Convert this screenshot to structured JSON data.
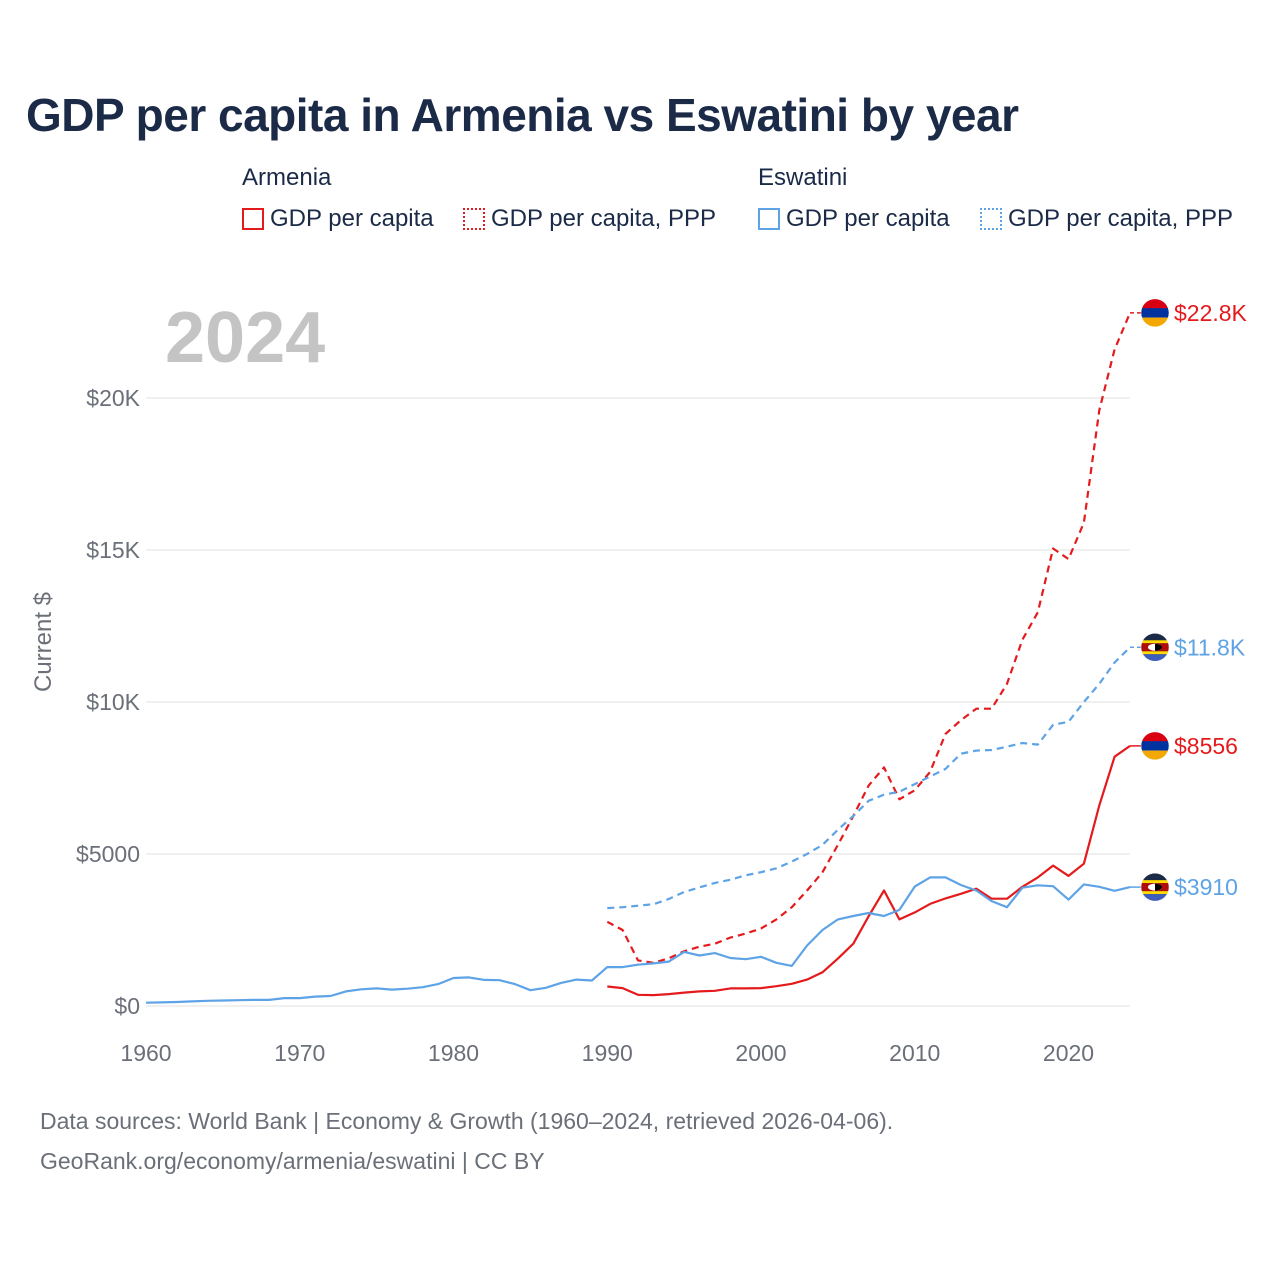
{
  "chart_data": {
    "type": "line",
    "title": "GDP per capita in Armenia vs Eswatini by year",
    "year_label": "2024",
    "ylabel": "Current $",
    "xlabel": "",
    "xlim": [
      1960,
      2024
    ],
    "ylim": [
      0,
      23500
    ],
    "x_ticks": [
      1960,
      1970,
      1980,
      1990,
      2000,
      2010,
      2020
    ],
    "x_tick_labels": [
      "1960",
      "1970",
      "1980",
      "1990",
      "2000",
      "2010",
      "2020"
    ],
    "y_ticks": [
      0,
      5000,
      10000,
      15000,
      20000
    ],
    "y_tick_labels": [
      "$0",
      "$5000",
      "$10K",
      "$15K",
      "$20K"
    ],
    "legend": {
      "groups": [
        {
          "name": "Armenia",
          "items": [
            {
              "label": "GDP per capita",
              "style": "solid",
              "color": "#e41a1c"
            },
            {
              "label": "GDP per capita, PPP",
              "style": "dotted",
              "color": "#e41a1c"
            }
          ]
        },
        {
          "name": "Eswatini",
          "items": [
            {
              "label": "GDP per capita",
              "style": "solid",
              "color": "#5ea3e6"
            },
            {
              "label": "GDP per capita, PPP",
              "style": "dotted",
              "color": "#5ea3e6"
            }
          ]
        }
      ]
    },
    "series": [
      {
        "name": "Armenia GDP per capita",
        "country": "Armenia",
        "color": "#e41a1c",
        "dashed": false,
        "end_label": "$8556",
        "flag": "armenia",
        "x": [
          1990,
          1991,
          1992,
          1993,
          1994,
          1995,
          1996,
          1997,
          1998,
          1999,
          2000,
          2001,
          2002,
          2003,
          2004,
          2005,
          2006,
          2007,
          2008,
          2009,
          2010,
          2011,
          2012,
          2013,
          2014,
          2015,
          2016,
          2017,
          2018,
          2019,
          2020,
          2021,
          2022,
          2023,
          2024
        ],
        "values": [
          640,
          590,
          370,
          360,
          390,
          440,
          480,
          500,
          580,
          580,
          590,
          650,
          730,
          870,
          1110,
          1560,
          2050,
          2950,
          3800,
          2850,
          3080,
          3360,
          3540,
          3690,
          3860,
          3530,
          3530,
          3920,
          4230,
          4620,
          4280,
          4680,
          6600,
          8200,
          8556
        ]
      },
      {
        "name": "Armenia GDP per capita, PPP",
        "country": "Armenia",
        "color": "#e41a1c",
        "dashed": true,
        "end_label": "$22.8K",
        "flag": "armenia",
        "x": [
          1990,
          1991,
          1992,
          1993,
          1994,
          1995,
          1996,
          1997,
          1998,
          1999,
          2000,
          2001,
          2002,
          2003,
          2004,
          2005,
          2006,
          2007,
          2008,
          2009,
          2010,
          2011,
          2012,
          2013,
          2014,
          2015,
          2016,
          2017,
          2018,
          2019,
          2020,
          2021,
          2022,
          2023,
          2024
        ],
        "values": [
          2770,
          2500,
          1500,
          1420,
          1570,
          1800,
          1950,
          2050,
          2250,
          2380,
          2550,
          2850,
          3250,
          3800,
          4400,
          5300,
          6250,
          7250,
          7850,
          6800,
          7100,
          7700,
          8950,
          9400,
          9780,
          9780,
          10600,
          12050,
          12950,
          15050,
          14700,
          15900,
          19600,
          21600,
          22800
        ]
      },
      {
        "name": "Eswatini GDP per capita",
        "country": "Eswatini",
        "color": "#5ea3e6",
        "dashed": false,
        "end_label": "$3910",
        "flag": "eswatini",
        "x": [
          1960,
          1961,
          1962,
          1963,
          1964,
          1965,
          1966,
          1967,
          1968,
          1969,
          1970,
          1971,
          1972,
          1973,
          1974,
          1975,
          1976,
          1977,
          1978,
          1979,
          1980,
          1981,
          1982,
          1983,
          1984,
          1985,
          1986,
          1987,
          1988,
          1989,
          1990,
          1991,
          1992,
          1993,
          1994,
          1995,
          1996,
          1997,
          1998,
          1999,
          2000,
          2001,
          2002,
          2003,
          2004,
          2005,
          2006,
          2007,
          2008,
          2009,
          2010,
          2011,
          2012,
          2013,
          2014,
          2015,
          2016,
          2017,
          2018,
          2019,
          2020,
          2021,
          2022,
          2023,
          2024
        ],
        "values": [
          110,
          120,
          130,
          150,
          170,
          180,
          190,
          200,
          200,
          260,
          260,
          310,
          330,
          480,
          550,
          580,
          540,
          570,
          620,
          720,
          920,
          940,
          860,
          850,
          720,
          520,
          600,
          760,
          870,
          840,
          1280,
          1280,
          1360,
          1400,
          1460,
          1780,
          1660,
          1740,
          1580,
          1540,
          1620,
          1420,
          1320,
          1990,
          2500,
          2850,
          2960,
          3060,
          2960,
          3160,
          3930,
          4230,
          4230,
          3980,
          3800,
          3450,
          3250,
          3890,
          3970,
          3940,
          3500,
          4000,
          3920,
          3790,
          3910
        ]
      },
      {
        "name": "Eswatini GDP per capita, PPP",
        "country": "Eswatini",
        "color": "#5ea3e6",
        "dashed": true,
        "end_label": "$11.8K",
        "flag": "eswatini",
        "x": [
          1990,
          1991,
          1992,
          1993,
          1994,
          1995,
          1996,
          1997,
          1998,
          1999,
          2000,
          2001,
          2002,
          2003,
          2004,
          2005,
          2006,
          2007,
          2008,
          2009,
          2010,
          2011,
          2012,
          2013,
          2014,
          2015,
          2016,
          2017,
          2018,
          2019,
          2020,
          2021,
          2022,
          2023,
          2024
        ],
        "values": [
          3220,
          3250,
          3300,
          3350,
          3520,
          3750,
          3900,
          4050,
          4150,
          4300,
          4400,
          4530,
          4750,
          5000,
          5300,
          5800,
          6250,
          6750,
          6950,
          7050,
          7300,
          7550,
          7800,
          8300,
          8400,
          8420,
          8530,
          8650,
          8600,
          9250,
          9350,
          10000,
          10600,
          11300,
          11800
        ]
      }
    ]
  },
  "footer": {
    "line1": "Data sources: World Bank | Economy & Growth (1960–2024, retrieved 2026-04-06).",
    "line2": "GeoRank.org/economy/armenia/eswatini | CC BY"
  },
  "colors": {
    "armenia": "#e41a1c",
    "eswatini": "#5ea3e6",
    "title": "#1b2a47",
    "axis_text": "#6b6f78",
    "grid": "#e2e2e2",
    "year_watermark": "#c4c4c4"
  }
}
